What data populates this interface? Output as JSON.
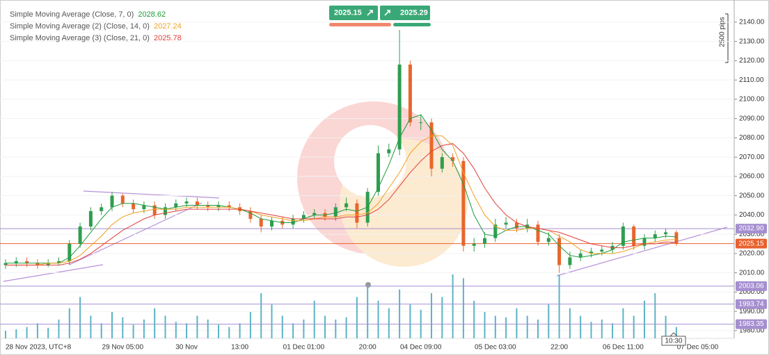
{
  "chart_data": {
    "type": "candlestick",
    "categories": [
      "28 Nov 2023, UTC+8",
      null,
      null,
      null,
      null,
      null,
      null,
      null,
      null,
      null,
      null,
      "29 Nov 05:00",
      null,
      null,
      null,
      null,
      null,
      "30 Nov",
      null,
      null,
      null,
      null,
      "13:00",
      null,
      null,
      null,
      null,
      null,
      "01 Dec 01:00",
      null,
      null,
      null,
      null,
      null,
      "20:00",
      null,
      null,
      null,
      null,
      "04 Dec 09:00",
      null,
      null,
      null,
      null,
      null,
      null,
      "05 Dec 03:00",
      null,
      null,
      null,
      null,
      null,
      "22:00",
      null,
      null,
      null,
      null,
      null,
      "06 Dec 11:00",
      null,
      null,
      null,
      null,
      null,
      null,
      "07 Dec 05:00"
    ],
    "open": [
      2014,
      2015,
      2016,
      2015,
      2014,
      2015,
      2016,
      2025,
      2034,
      2042,
      2044,
      2050,
      2046,
      2043,
      2045,
      2040,
      2044,
      2046,
      2047,
      2045,
      2044,
      2045,
      2044,
      2042,
      2038,
      2034,
      2037,
      2035,
      2038,
      2040,
      2041,
      2039,
      2044,
      2046,
      2036,
      2052,
      2072,
      2074,
      2118,
      2088,
      2088,
      2064,
      2070,
      2068,
      2024,
      2025,
      2028,
      2035,
      2036,
      2033,
      2035,
      2026,
      2028,
      2014,
      2018,
      2020,
      2021,
      2022,
      2024,
      2034,
      2024,
      2028,
      2030,
      2031,
      null,
      null
    ],
    "high": [
      2017,
      2018,
      2018,
      2017,
      2017,
      2018,
      2027,
      2036,
      2044,
      2046,
      2052,
      2051,
      2048,
      2047,
      2047,
      2046,
      2048,
      2049,
      2049,
      2047,
      2047,
      2047,
      2046,
      2044,
      2040,
      2039,
      2039,
      2040,
      2042,
      2043,
      2043,
      2046,
      2049,
      2048,
      2054,
      2076,
      2077,
      2136,
      2120,
      2092,
      2090,
      2072,
      2072,
      2070,
      2028,
      2031,
      2038,
      2039,
      2038,
      2038,
      2037,
      2031,
      2030,
      2021,
      2022,
      2023,
      2024,
      2026,
      2036,
      2035,
      2030,
      2032,
      2033,
      2032,
      null,
      null
    ],
    "low": [
      2012,
      2013,
      2013,
      2012,
      2013,
      2014,
      2014,
      2023,
      2032,
      2040,
      2042,
      2044,
      2041,
      2041,
      2038,
      2038,
      2042,
      2044,
      2043,
      2042,
      2042,
      2042,
      2040,
      2036,
      2031,
      2032,
      2033,
      2033,
      2036,
      2038,
      2037,
      2037,
      2042,
      2033,
      2034,
      2050,
      2070,
      2071,
      2086,
      2084,
      2060,
      2062,
      2065,
      2021,
      2021,
      2023,
      2026,
      2033,
      2031,
      2031,
      2024,
      2024,
      2010,
      2012,
      2016,
      2018,
      2019,
      2020,
      2022,
      2022,
      2022,
      2026,
      2028,
      2024,
      null,
      null
    ],
    "close": [
      2015,
      2016,
      2015,
      2014,
      2015,
      2016,
      2025,
      2034,
      2042,
      2044,
      2050,
      2046,
      2043,
      2045,
      2040,
      2044,
      2046,
      2047,
      2045,
      2044,
      2045,
      2044,
      2042,
      2038,
      2034,
      2037,
      2035,
      2038,
      2040,
      2041,
      2039,
      2044,
      2046,
      2036,
      2052,
      2072,
      2074,
      2118,
      2088,
      2088,
      2064,
      2070,
      2068,
      2024,
      2025,
      2028,
      2035,
      2036,
      2033,
      2035,
      2026,
      2028,
      2014,
      2018,
      2020,
      2021,
      2022,
      2024,
      2034,
      2024,
      2028,
      2030,
      2031,
      2025.15,
      null,
      null
    ],
    "up_color": "#2e9e4f",
    "down_color": "#e8662c",
    "series": [
      {
        "name": "Simple Moving Average (Close, 7, 0)",
        "color": "#1a9c3a",
        "values": [
          2015,
          2015,
          2015,
          2015,
          2015,
          2015,
          2018,
          2024,
          2031,
          2038,
          2044,
          2046,
          2046,
          2045,
          2044,
          2043,
          2044,
          2045,
          2045,
          2045,
          2045,
          2044,
          2043,
          2041,
          2038,
          2037,
          2036,
          2036,
          2038,
          2040,
          2040,
          2041,
          2043,
          2042,
          2044,
          2054,
          2066,
          2080,
          2090,
          2092,
          2084,
          2074,
          2068,
          2056,
          2040,
          2030,
          2029,
          2032,
          2034,
          2034,
          2032,
          2030,
          2024,
          2019,
          2018,
          2019,
          2020,
          2022,
          2026,
          2027,
          2028,
          2028,
          2029,
          2028.62,
          null,
          null
        ]
      },
      {
        "name": "Simple Moving Average (2) (Close, 14, 0)",
        "color": "#f0a020",
        "values": [
          2014,
          2014,
          2014,
          2014,
          2015,
          2015,
          2016,
          2019,
          2024,
          2029,
          2035,
          2039,
          2041,
          2042,
          2043,
          2043,
          2043,
          2044,
          2044,
          2044,
          2044,
          2044,
          2043,
          2042,
          2040,
          2039,
          2038,
          2037,
          2037,
          2038,
          2039,
          2039,
          2040,
          2040,
          2041,
          2046,
          2054,
          2062,
          2072,
          2078,
          2081,
          2081,
          2076,
          2062,
          2050,
          2040,
          2034,
          2032,
          2032,
          2033,
          2033,
          2032,
          2029,
          2026,
          2022,
          2020,
          2020,
          2020,
          2021,
          2023,
          2025,
          2026,
          2027,
          2027.24,
          null,
          null
        ]
      },
      {
        "name": "Simple Moving Average (3) (Close, 21, 0)",
        "color": "#e0403a",
        "values": [
          2014,
          2014,
          2014,
          2014,
          2014,
          2014,
          2015,
          2017,
          2020,
          2024,
          2028,
          2032,
          2035,
          2038,
          2040,
          2041,
          2042,
          2043,
          2043,
          2043,
          2043,
          2043,
          2043,
          2042,
          2041,
          2040,
          2039,
          2038,
          2038,
          2038,
          2038,
          2038,
          2039,
          2039,
          2040,
          2043,
          2048,
          2055,
          2062,
          2068,
          2073,
          2076,
          2077,
          2072,
          2064,
          2054,
          2046,
          2040,
          2036,
          2034,
          2033,
          2032,
          2031,
          2029,
          2027,
          2025,
          2024,
          2023,
          2023,
          2024,
          2025,
          2025,
          2026,
          2025.78,
          null,
          null
        ]
      }
    ],
    "volume": {
      "color": "#5ab4c5",
      "values": [
        10,
        12,
        15,
        20,
        14,
        25,
        40,
        55,
        30,
        20,
        35,
        28,
        18,
        25,
        40,
        30,
        22,
        20,
        30,
        25,
        18,
        15,
        20,
        35,
        60,
        45,
        30,
        20,
        25,
        50,
        30,
        25,
        28,
        55,
        70,
        50,
        40,
        65,
        45,
        38,
        60,
        55,
        85,
        80,
        50,
        35,
        30,
        28,
        40,
        30,
        25,
        45,
        85,
        40,
        30,
        22,
        25,
        20,
        40,
        30,
        50,
        60,
        30,
        15,
        null,
        null
      ]
    },
    "hlines": [
      {
        "value": 2032.9,
        "label": "2032.90",
        "color": "#a58fd0"
      },
      {
        "value": 2025.15,
        "label": "2025.15",
        "color": "#e8622f"
      },
      {
        "value": 2003.06,
        "label": "2003.06",
        "color": "#a58fd0"
      },
      {
        "value": 1993.74,
        "label": "1993.74",
        "color": "#a58fd0"
      },
      {
        "value": 1983.35,
        "label": "1983.35",
        "color": "#a58fd0"
      }
    ],
    "ylim": [
      1976,
      2151.5
    ],
    "yticks": [
      {
        "value": 1980,
        "label": "1980.00"
      },
      {
        "value": 1990,
        "label": "1990.00"
      },
      {
        "value": 2000,
        "label": "2000.00"
      },
      {
        "value": 2010,
        "label": "2010.00"
      },
      {
        "value": 2020,
        "label": "2020.00"
      },
      {
        "value": 2030,
        "label": "2030.00"
      },
      {
        "value": 2040,
        "label": "2040.00"
      },
      {
        "value": 2050,
        "label": "2050.00"
      },
      {
        "value": 2060,
        "label": "2060.00"
      },
      {
        "value": 2070,
        "label": "2070.00"
      },
      {
        "value": 2080,
        "label": "2080.00"
      },
      {
        "value": 2090,
        "label": "2090.00"
      },
      {
        "value": 2100,
        "label": "2100.00"
      },
      {
        "value": 2110,
        "label": "2110.00"
      },
      {
        "value": 2120,
        "label": "2120.00"
      },
      {
        "value": 2130,
        "label": "2130.00"
      },
      {
        "value": 2140,
        "label": "2140.00"
      }
    ],
    "grid": true,
    "sell_price": 2025.15,
    "buy_price": 2025.29,
    "pips_label": "2500 pips",
    "crosshair_label": "10:30"
  }
}
